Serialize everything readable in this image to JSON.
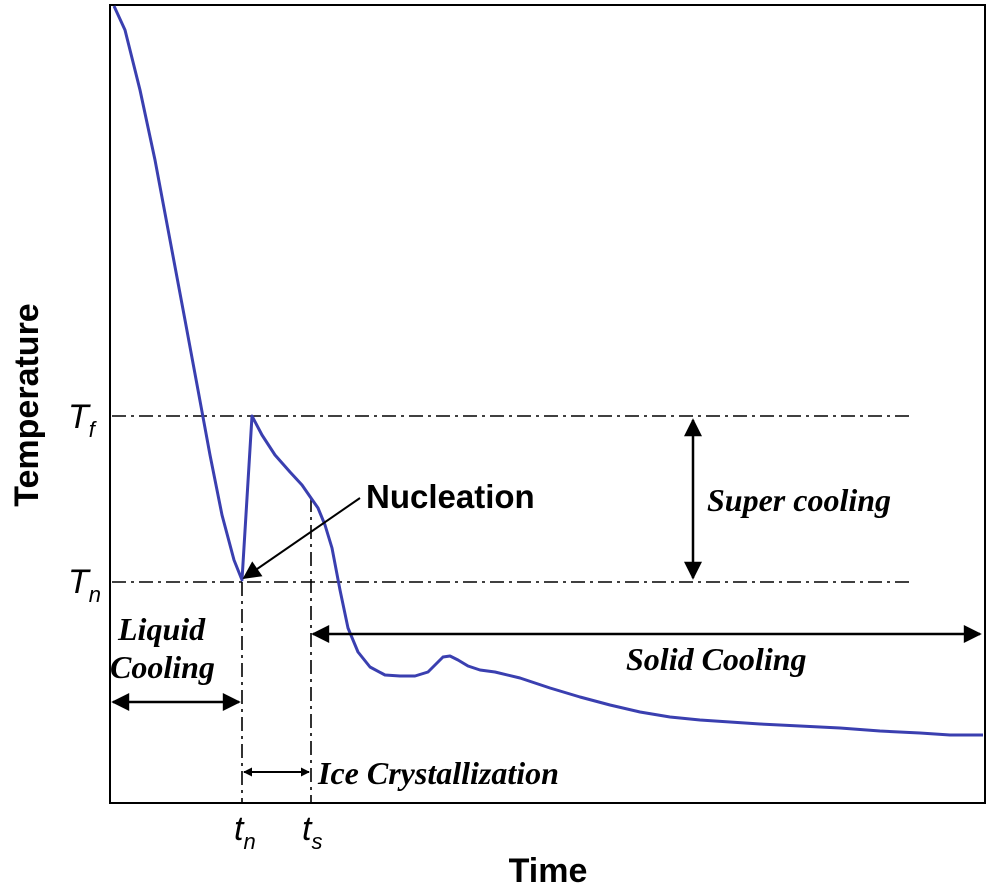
{
  "axes": {
    "x_title": "Time",
    "y_title": "Temperature"
  },
  "y_ticks": {
    "freezing": {
      "symbol": "T",
      "subscript": "f"
    },
    "nucleation": {
      "symbol": "T",
      "subscript": "n"
    }
  },
  "x_ticks": {
    "nucleation": {
      "symbol": "t",
      "subscript": "n"
    },
    "solidification": {
      "symbol": "t",
      "subscript": "s"
    }
  },
  "annotations": {
    "nucleation": "Nucleation",
    "super_cooling": "Super cooling",
    "liquid_cooling_line1": "Liquid",
    "liquid_cooling_line2": "Cooling",
    "solid_cooling": "Solid Cooling",
    "ice_crystallization": "Ice Crystallization"
  },
  "colors": {
    "curve": "#3a3fb0",
    "lines": "#000000"
  }
}
